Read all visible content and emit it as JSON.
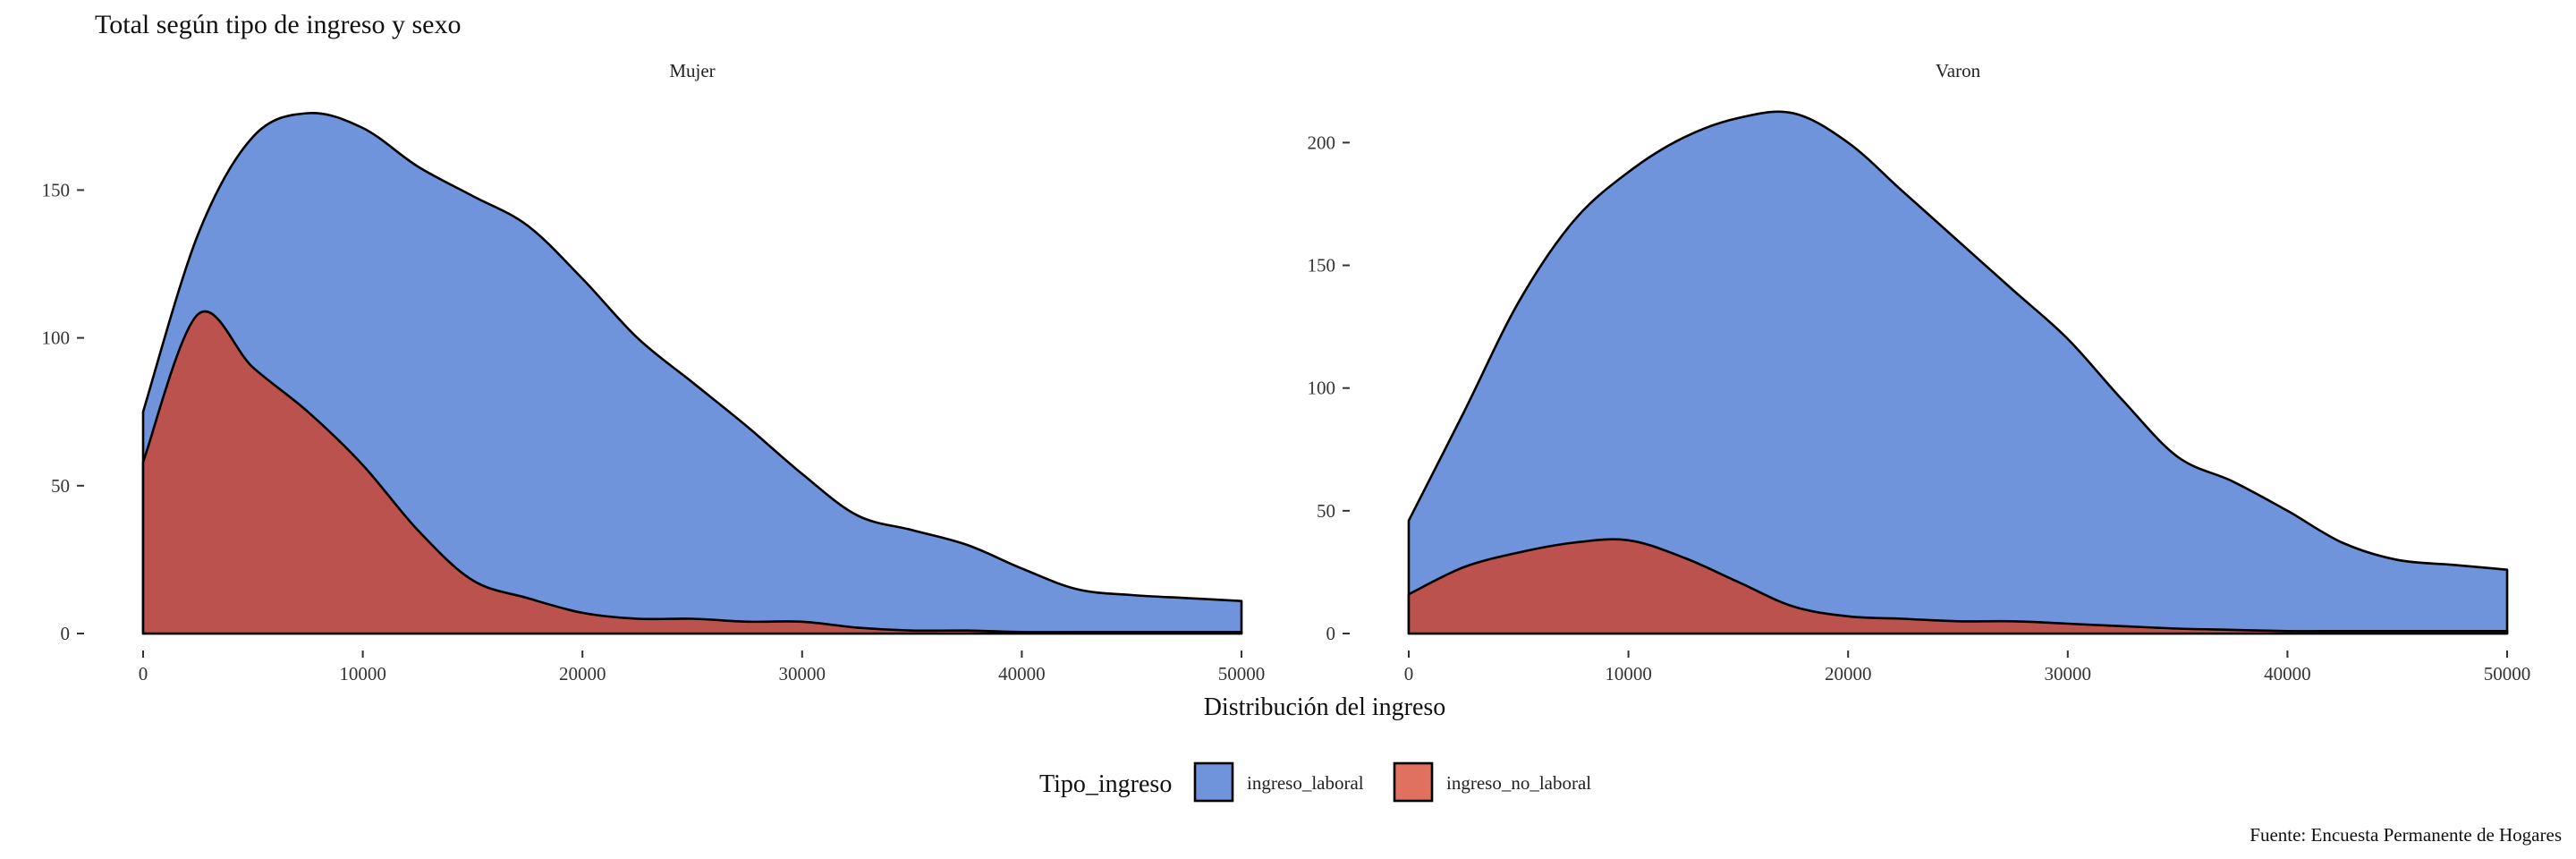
{
  "chart_data": {
    "type": "area",
    "subtype": "stacked-density",
    "title": "Total según tipo de ingreso y sexo",
    "xlabel": "Distribución del ingreso",
    "ylabel": "",
    "caption": "Fuente: Encuesta Permanente de Hogares",
    "grid": false,
    "legend": {
      "title": "Tipo_ingreso",
      "placement": "bottom",
      "entries": [
        {
          "label": "ingreso_laboral",
          "color": "#6F94DB"
        },
        {
          "label": "ingreso_no_laboral",
          "color": "#E07060"
        }
      ]
    },
    "colors": {
      "ingreso_laboral": "#6F94DB",
      "ingreso_no_laboral": "#BB524D",
      "outline": "#000000"
    },
    "panels": [
      {
        "strip": "Mujer",
        "xlim": [
          0,
          50000
        ],
        "ylim": [
          0,
          181
        ],
        "x_ticks": [
          0,
          10000,
          20000,
          30000,
          40000,
          50000
        ],
        "x_tick_labels": [
          "0",
          "10000",
          "20000",
          "30000",
          "40000",
          "50000"
        ],
        "y_ticks": [
          0,
          50,
          100,
          150
        ],
        "y_tick_labels": [
          "0",
          "50",
          "100",
          "150"
        ],
        "x": [
          0,
          2500,
          5000,
          7500,
          10000,
          12500,
          15000,
          17500,
          20000,
          22500,
          25000,
          27500,
          30000,
          32500,
          35000,
          37500,
          40000,
          42500,
          45000,
          47500,
          50000
        ],
        "series": [
          {
            "name": "ingreso_laboral",
            "values": [
              75,
              135,
              168,
              176,
              171,
              158,
              148,
              138,
              120,
              100,
              85,
              70,
              54,
              40,
              35,
              30,
              22,
              15,
              13,
              12,
              11
            ]
          },
          {
            "name": "ingreso_no_laboral",
            "values": [
              58,
              108,
              90,
              75,
              57,
              35,
              18,
              12,
              7,
              5,
              5,
              4,
              4,
              2,
              1,
              1,
              0.5,
              0.5,
              0.5,
              0.5,
              0.5
            ]
          }
        ]
      },
      {
        "strip": "Varon",
        "xlim": [
          0,
          50000
        ],
        "ylim": [
          0,
          218
        ],
        "x_ticks": [
          0,
          10000,
          20000,
          30000,
          40000,
          50000
        ],
        "x_tick_labels": [
          "0",
          "10000",
          "20000",
          "30000",
          "40000",
          "50000"
        ],
        "y_ticks": [
          0,
          50,
          100,
          150,
          200
        ],
        "y_tick_labels": [
          "0",
          "50",
          "100",
          "150",
          "200"
        ],
        "x": [
          0,
          2500,
          5000,
          7500,
          10000,
          12500,
          15000,
          17500,
          20000,
          22500,
          25000,
          27500,
          30000,
          32500,
          35000,
          37500,
          40000,
          42500,
          45000,
          47500,
          50000
        ],
        "series": [
          {
            "name": "ingreso_laboral",
            "values": [
              46,
              90,
              135,
              168,
              188,
              202,
              210,
              212,
              200,
              180,
              160,
              140,
              120,
              95,
              72,
              62,
              50,
              37,
              30,
              28,
              26
            ]
          },
          {
            "name": "ingreso_no_laboral",
            "values": [
              16,
              27,
              33,
              37,
              38,
              31,
              21,
              11,
              7,
              6,
              5,
              5,
              4,
              3,
              2,
              1.5,
              1,
              1,
              1,
              1,
              1
            ]
          }
        ]
      }
    ]
  }
}
